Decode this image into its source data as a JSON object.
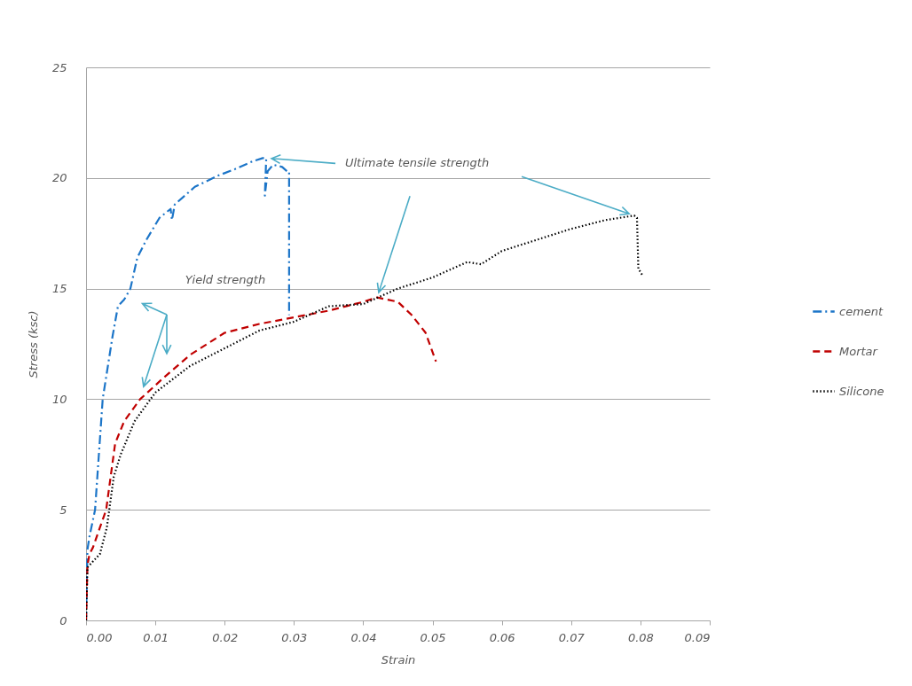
{
  "chart_data": {
    "type": "line",
    "xlabel": "Strain",
    "ylabel": "Stress (ksc)",
    "xlim": [
      0,
      0.09
    ],
    "ylim": [
      0,
      25
    ],
    "xticks": [
      {
        "value": 0,
        "label": "0.00"
      },
      {
        "value": 0.01,
        "label": "0.01"
      },
      {
        "value": 0.02,
        "label": "0.02"
      },
      {
        "value": 0.03,
        "label": "0.03"
      },
      {
        "value": 0.04,
        "label": "0.04"
      },
      {
        "value": 0.05,
        "label": "0.05"
      },
      {
        "value": 0.06,
        "label": "0.06"
      },
      {
        "value": 0.07,
        "label": "0.07"
      },
      {
        "value": 0.08,
        "label": "0.08"
      },
      {
        "value": 0.09,
        "label": "0.09"
      }
    ],
    "yticks": [
      0,
      5,
      10,
      15,
      20,
      25
    ],
    "grid": "y",
    "legend": "right",
    "annotations": [
      {
        "text": "Ultimate tensile strength",
        "x": 0.026,
        "y": 20.9
      },
      "Yield strength"
    ],
    "series": [
      {
        "name": "cement",
        "color": "#1c75c8",
        "line_style": "dashdot",
        "x": [
          0,
          0.0002,
          0.0005,
          0.0013,
          0.0024,
          0.0038,
          0.0046,
          0.0055,
          0.0064,
          0.0074,
          0.0087,
          0.0106,
          0.0122,
          0.0124,
          0.0128,
          0.0157,
          0.019,
          0.0215,
          0.024,
          0.0255,
          0.026,
          0.0258,
          0.0262,
          0.027,
          0.0283,
          0.029,
          0.0293,
          0.0293
        ],
        "values": [
          0,
          3.2,
          3.8,
          5,
          10,
          12.8,
          14.2,
          14.5,
          15,
          16.4,
          17.2,
          18.2,
          18.6,
          18.1,
          18.8,
          19.6,
          20.1,
          20.4,
          20.75,
          20.9,
          20.9,
          19.2,
          20.3,
          20.6,
          20.5,
          20.3,
          20.3,
          13.8
        ]
      },
      {
        "name": "Mortar",
        "color": "#c00000",
        "line_style": "dashed",
        "x": [
          0,
          0.0002,
          0.0005,
          0.001,
          0.002,
          0.0029,
          0.0042,
          0.0055,
          0.0078,
          0.0113,
          0.015,
          0.02,
          0.025,
          0.03,
          0.035,
          0.04,
          0.042,
          0.045,
          0.047,
          0.049,
          0.0505
        ],
        "values": [
          0,
          2.5,
          3,
          3.3,
          4.2,
          5,
          8,
          9,
          10,
          11,
          12,
          13,
          13.4,
          13.7,
          14,
          14.4,
          14.6,
          14.4,
          13.8,
          13,
          11.7
        ]
      },
      {
        "name": "Silicone",
        "color": "#000000",
        "line_style": "dotted",
        "x": [
          0,
          0.0002,
          0.002,
          0.003,
          0.004,
          0.005,
          0.007,
          0.01,
          0.015,
          0.02,
          0.025,
          0.03,
          0.035,
          0.04,
          0.045,
          0.05,
          0.055,
          0.057,
          0.06,
          0.065,
          0.07,
          0.075,
          0.0791,
          0.0795,
          0.0797,
          0.0803
        ],
        "values": [
          0,
          2.4,
          3,
          4.2,
          6.5,
          7.5,
          9,
          10.3,
          11.5,
          12.3,
          13.1,
          13.5,
          14.2,
          14.3,
          15,
          15.5,
          16.2,
          16.1,
          16.7,
          17.2,
          17.7,
          18.1,
          18.3,
          18.2,
          15.9,
          15.6
        ]
      }
    ]
  }
}
